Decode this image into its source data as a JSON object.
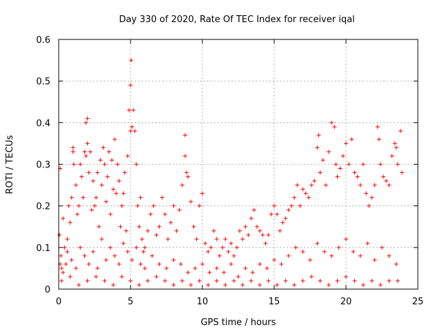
{
  "chart_data": {
    "type": "scatter",
    "title": "Day 330 of 2020, Rate Of TEC Index for receiver iqal",
    "xlabel": "GPS time / hours",
    "ylabel": "ROTI / TECUs",
    "xlim": [
      0,
      25
    ],
    "ylim": [
      0,
      0.6
    ],
    "xticks": [
      0,
      5,
      10,
      15,
      20,
      25
    ],
    "yticks": [
      0,
      0.1,
      0.2,
      0.3,
      0.4,
      0.5,
      0.6
    ],
    "xtick_labels": [
      "0",
      "5",
      "10",
      "15",
      "20",
      "25"
    ],
    "ytick_labels": [
      "0",
      "0.1",
      "0.2",
      "0.3",
      "0.4",
      "0.5",
      "0.6"
    ],
    "grid": true,
    "marker": "+",
    "color": "#ff0000",
    "series": [
      {
        "x": [
          0.05,
          0.1,
          0.15,
          0.2,
          0.3,
          0.4,
          0.5,
          0.6,
          0.7,
          0.8,
          0.9,
          1.0,
          1.0,
          1.05,
          1.2,
          1.3,
          1.4,
          1.5,
          1.6,
          1.7,
          1.8,
          1.9,
          1.9,
          2.0,
          2.0,
          2.1,
          2.2,
          2.3,
          2.4,
          2.5,
          2.6,
          2.7,
          2.8,
          2.9,
          3.0,
          3.1,
          3.2,
          3.3,
          3.4,
          3.5,
          3.6,
          3.7,
          3.8,
          3.9,
          4.0,
          4.1,
          4.2,
          4.3,
          4.4,
          4.5,
          4.6,
          4.7,
          4.8,
          4.9,
          5.0,
          5.0,
          5.05,
          5.1,
          5.2,
          5.3,
          5.4,
          5.5,
          5.6,
          5.7,
          5.8,
          5.9,
          6.0,
          6.2,
          6.4,
          6.6,
          6.8,
          7.0,
          7.2,
          7.4,
          7.6,
          7.8,
          8.0,
          8.2,
          8.4,
          8.6,
          8.8,
          8.8,
          8.9,
          9.0,
          9.2,
          9.4,
          9.6,
          9.8,
          10.0,
          10.2,
          10.4,
          10.6,
          10.8,
          11.0,
          11.2,
          11.4,
          11.6,
          11.8,
          12.0,
          12.2,
          12.4,
          12.6,
          12.8,
          13.0,
          13.2,
          13.4,
          13.6,
          13.8,
          14.0,
          14.2,
          14.4,
          14.6,
          14.8,
          15.0,
          15.2,
          15.4,
          15.6,
          15.8,
          16.0,
          16.2,
          16.4,
          16.6,
          16.8,
          17.0,
          17.2,
          17.4,
          17.6,
          17.8,
          18.0,
          18.1,
          18.2,
          18.4,
          18.6,
          18.8,
          19.0,
          19.2,
          19.3,
          19.4,
          19.6,
          19.8,
          20.0,
          20.2,
          20.4,
          20.6,
          20.8,
          21.0,
          21.2,
          21.4,
          21.6,
          21.8,
          22.0,
          22.2,
          22.3,
          22.4,
          22.6,
          22.8,
          23.0,
          23.2,
          23.4,
          23.5,
          23.6,
          23.8,
          23.9,
          0.1,
          0.3,
          0.6,
          0.9,
          1.2,
          1.5,
          1.8,
          2.1,
          2.4,
          2.7,
          3.0,
          3.3,
          3.6,
          3.9,
          4.2,
          4.5,
          4.8,
          5.1,
          5.4,
          5.7,
          6.0,
          6.5,
          7.0,
          7.5,
          8.0,
          8.5,
          9.0,
          9.5,
          10.0,
          10.5,
          11.0,
          11.5,
          12.0,
          12.5,
          13.0,
          13.5,
          14.0,
          14.5,
          15.0,
          15.5,
          16.0,
          16.5,
          17.0,
          17.5,
          18.0,
          18.5,
          19.0,
          19.5,
          20.0,
          20.5,
          21.0,
          21.5,
          22.0,
          22.5,
          23.0,
          23.5,
          0.2,
          0.8,
          1.4,
          2.0,
          2.6,
          3.2,
          3.8,
          4.4,
          5.0,
          5.6,
          6.2,
          6.8,
          7.4,
          8.0,
          8.6,
          9.2,
          9.8,
          10.4,
          11.0,
          11.6,
          12.2,
          12.8,
          13.4,
          14.0,
          14.6,
          15.2,
          15.8,
          16.4,
          17.0,
          17.6,
          18.2,
          18.8,
          19.4,
          20.0,
          20.6,
          21.2,
          21.8,
          22.4,
          23.0,
          23.6
        ],
        "y": [
          0.13,
          0.29,
          0.08,
          0.05,
          0.17,
          0.1,
          0.06,
          0.12,
          0.2,
          0.16,
          0.22,
          0.33,
          0.34,
          0.3,
          0.25,
          0.18,
          0.2,
          0.3,
          0.27,
          0.22,
          0.33,
          0.4,
          0.32,
          0.41,
          0.35,
          0.28,
          0.33,
          0.19,
          0.26,
          0.2,
          0.22,
          0.28,
          0.15,
          0.31,
          0.25,
          0.34,
          0.3,
          0.21,
          0.27,
          0.33,
          0.18,
          0.31,
          0.24,
          0.36,
          0.23,
          0.3,
          0.26,
          0.15,
          0.2,
          0.23,
          0.28,
          0.14,
          0.32,
          0.43,
          0.49,
          0.38,
          0.55,
          0.39,
          0.43,
          0.38,
          0.3,
          0.2,
          0.15,
          0.22,
          0.12,
          0.09,
          0.1,
          0.14,
          0.18,
          0.2,
          0.13,
          0.15,
          0.22,
          0.18,
          0.12,
          0.16,
          0.2,
          0.14,
          0.19,
          0.25,
          0.37,
          0.32,
          0.28,
          0.27,
          0.21,
          0.15,
          0.12,
          0.2,
          0.23,
          0.11,
          0.09,
          0.1,
          0.14,
          0.12,
          0.08,
          0.1,
          0.12,
          0.09,
          0.11,
          0.08,
          0.1,
          0.14,
          0.12,
          0.15,
          0.13,
          0.17,
          0.19,
          0.15,
          0.14,
          0.13,
          0.11,
          0.13,
          0.18,
          0.2,
          0.18,
          0.14,
          0.16,
          0.17,
          0.19,
          0.2,
          0.22,
          0.25,
          0.2,
          0.24,
          0.23,
          0.22,
          0.25,
          0.26,
          0.34,
          0.37,
          0.28,
          0.31,
          0.25,
          0.33,
          0.4,
          0.39,
          0.3,
          0.27,
          0.29,
          0.32,
          0.35,
          0.3,
          0.36,
          0.28,
          0.27,
          0.25,
          0.3,
          0.23,
          0.2,
          0.22,
          0.25,
          0.39,
          0.36,
          0.3,
          0.27,
          0.26,
          0.25,
          0.32,
          0.35,
          0.34,
          0.3,
          0.38,
          0.28,
          0.06,
          0.04,
          0.09,
          0.07,
          0.05,
          0.1,
          0.08,
          0.06,
          0.09,
          0.05,
          0.12,
          0.07,
          0.1,
          0.08,
          0.06,
          0.11,
          0.09,
          0.07,
          0.1,
          0.06,
          0.05,
          0.08,
          0.06,
          0.05,
          0.07,
          0.06,
          0.04,
          0.05,
          0.06,
          0.04,
          0.05,
          0.04,
          0.06,
          0.03,
          0.05,
          0.04,
          0.06,
          0.05,
          0.07,
          0.06,
          0.08,
          0.1,
          0.09,
          0.07,
          0.11,
          0.09,
          0.08,
          0.1,
          0.12,
          0.09,
          0.08,
          0.11,
          0.07,
          0.1,
          0.08,
          0.06,
          0.02,
          0.03,
          0.01,
          0.02,
          0.03,
          0.02,
          0.01,
          0.03,
          0.02,
          0.01,
          0.02,
          0.03,
          0.02,
          0.01,
          0.02,
          0.01,
          0.02,
          0.01,
          0.02,
          0.01,
          0.02,
          0.01,
          0.02,
          0.01,
          0.02,
          0.01,
          0.02,
          0.01,
          0.02,
          0.03,
          0.02,
          0.01,
          0.02,
          0.03,
          0.02,
          0.01,
          0.02,
          0.01,
          0.02,
          0.02
        ]
      }
    ]
  }
}
